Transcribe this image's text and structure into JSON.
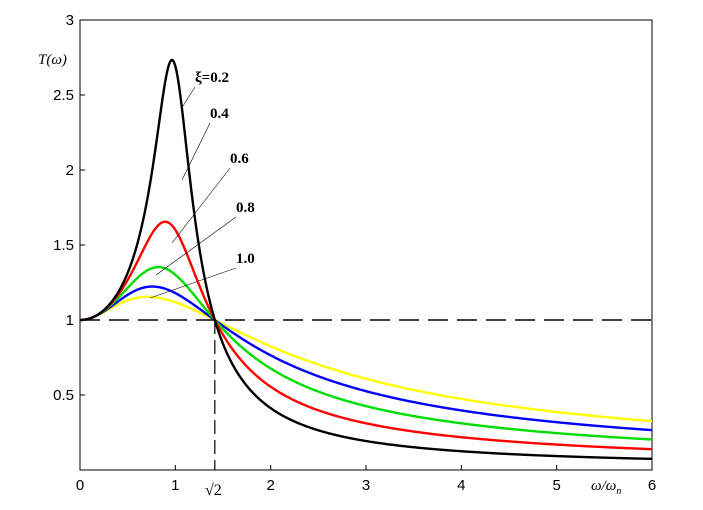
{
  "chart_data": {
    "type": "line",
    "title": "",
    "ylabel": "T(ω)",
    "xlabel_main": "ω/ω",
    "xlabel_sub": "n",
    "xlim": [
      0,
      6
    ],
    "ylim": [
      0,
      3
    ],
    "xticks": [
      {
        "value": 0,
        "label": "0"
      },
      {
        "value": 1,
        "label": "1"
      },
      {
        "value": 2,
        "label": "2"
      },
      {
        "value": 3,
        "label": "3"
      },
      {
        "value": 4,
        "label": "4"
      },
      {
        "value": 5,
        "label": "5"
      },
      {
        "value": 6,
        "label": "6"
      }
    ],
    "yticks": [
      {
        "value": 0.5,
        "label": "0.5"
      },
      {
        "value": 1,
        "label": "1"
      },
      {
        "value": 1.5,
        "label": "1.5"
      },
      {
        "value": 2,
        "label": "2"
      },
      {
        "value": 2.5,
        "label": "2.5"
      },
      {
        "value": 3,
        "label": "3"
      }
    ],
    "sqrt2_label": "√2",
    "sqrt2_value": 1.41421,
    "reference_line_y": 1,
    "grid": false,
    "x_range": [
      0,
      6
    ],
    "series": [
      {
        "name": "ξ=0.2",
        "label": "ξ=0.2",
        "xi": 0.2,
        "color": "#000000",
        "peak_x": 0.96,
        "peak_y": 2.72
      },
      {
        "name": "0.4",
        "label": "0.4",
        "xi": 0.4,
        "color": "#ff0000",
        "peak_x": 0.87,
        "peak_y": 1.65
      },
      {
        "name": "0.6",
        "label": "0.6",
        "xi": 0.6,
        "color": "#00dd00",
        "peak_x": 0.78,
        "peak_y": 1.35
      },
      {
        "name": "0.8",
        "label": "0.8",
        "xi": 0.8,
        "color": "#0000ff",
        "peak_x": 0.72,
        "peak_y": 1.23
      },
      {
        "name": "1.0",
        "label": "1.0",
        "xi": 1.0,
        "color": "#ffff00",
        "peak_x": 0.67,
        "peak_y": 1.15
      }
    ]
  }
}
